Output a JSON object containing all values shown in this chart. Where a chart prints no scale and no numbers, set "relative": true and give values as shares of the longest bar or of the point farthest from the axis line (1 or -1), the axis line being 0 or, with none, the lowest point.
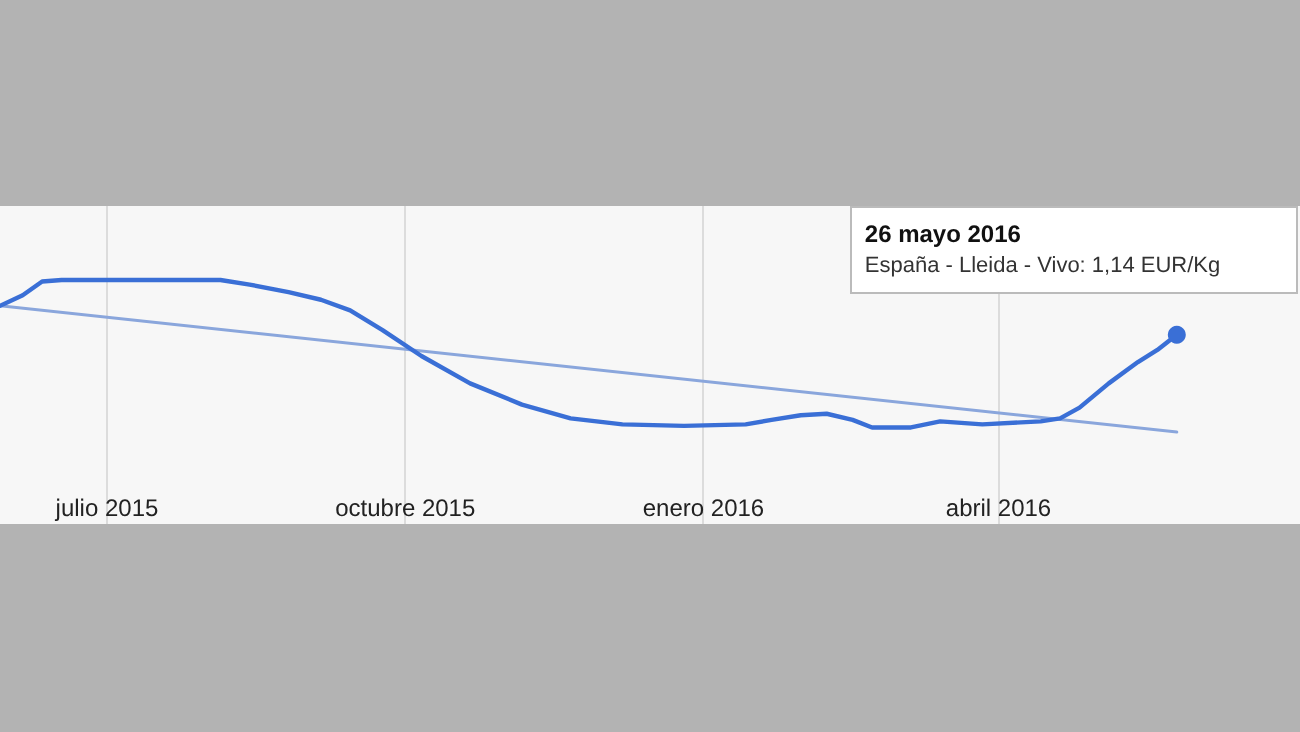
{
  "chart_data": {
    "type": "line",
    "relative": true,
    "grid": "x",
    "marker": "none",
    "line_style": "solid",
    "xlim": [
      "2015-05-29",
      "2016-07-03"
    ],
    "xticks": [
      {
        "value": "2015-07-01",
        "label": "julio 2015"
      },
      {
        "value": "2015-10-01",
        "label": "octubre 2015"
      },
      {
        "value": "2016-01-01",
        "label": "enero 2016"
      },
      {
        "value": "2016-04-01",
        "label": "abril 2016"
      }
    ],
    "series": [
      {
        "color": "#3a6fd6",
        "x": [
          "2015-05-29",
          "2015-06-05",
          "2015-06-11",
          "2015-06-17",
          "2015-08-05",
          "2015-08-14",
          "2015-08-26",
          "2015-09-05",
          "2015-09-14",
          "2015-09-24",
          "2015-10-06",
          "2015-10-21",
          "2015-11-06",
          "2015-11-21",
          "2015-12-07",
          "2015-12-26",
          "2016-01-14",
          "2016-01-22",
          "2016-01-31",
          "2016-02-08",
          "2016-02-16",
          "2016-02-22",
          "2016-03-05",
          "2016-03-14",
          "2016-03-27",
          "2016-04-14",
          "2016-04-20",
          "2016-04-26",
          "2016-05-05",
          "2016-05-14",
          "2016-05-20",
          "2016-05-26"
        ],
        "values": [
          0.83,
          0.9,
          0.99,
          1,
          1,
          0.97,
          0.92,
          0.87,
          0.8,
          0.67,
          0.5,
          0.32,
          0.18,
          0.09,
          0.05,
          0.04,
          0.05,
          0.08,
          0.11,
          0.12,
          0.08,
          0.03,
          0.03,
          0.07,
          0.05,
          0.07,
          0.09,
          0.16,
          0.32,
          0.46,
          0.54,
          0.64
        ]
      },
      {
        "type": "line",
        "color": "#8aa6dc",
        "x": [
          "2015-05-29",
          "2016-05-26"
        ],
        "values": [
          0.83,
          0
        ]
      }
    ],
    "annotations": [
      {
        "text": "26 mayo 2016\nEspaña - Lleida - Vivo: 1,14 EUR/Kg",
        "x": "2016-05-26",
        "y": 0.64
      }
    ]
  }
}
